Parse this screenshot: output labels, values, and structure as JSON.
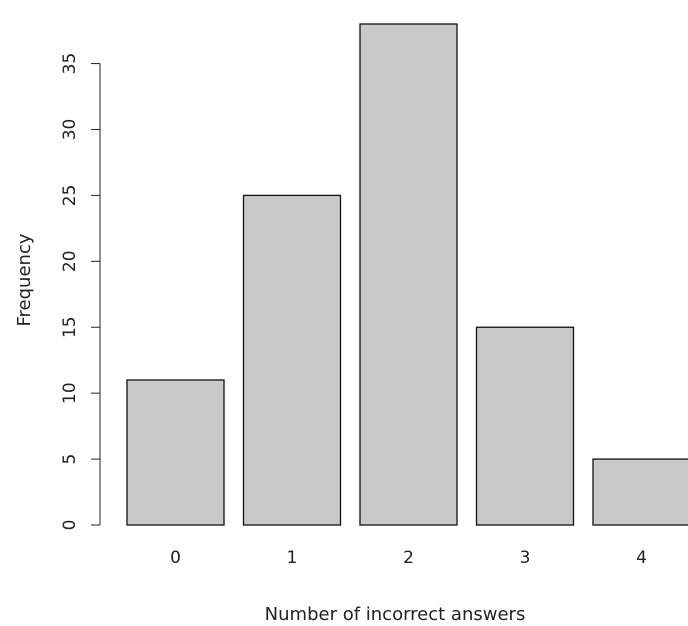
{
  "chart_data": {
    "type": "bar",
    "title": "",
    "xlabel": "Number of incorrect answers",
    "ylabel": "Frequency",
    "categories": [
      "0",
      "1",
      "2",
      "3",
      "4"
    ],
    "values": [
      11,
      25,
      38,
      15,
      5
    ],
    "ylim": [
      0,
      38
    ],
    "yticks": [
      0,
      5,
      10,
      15,
      20,
      25,
      30,
      35
    ],
    "bar_color": "#c9c9c9",
    "bar_edge_color": "#111111",
    "grid": false,
    "legend": "none"
  }
}
